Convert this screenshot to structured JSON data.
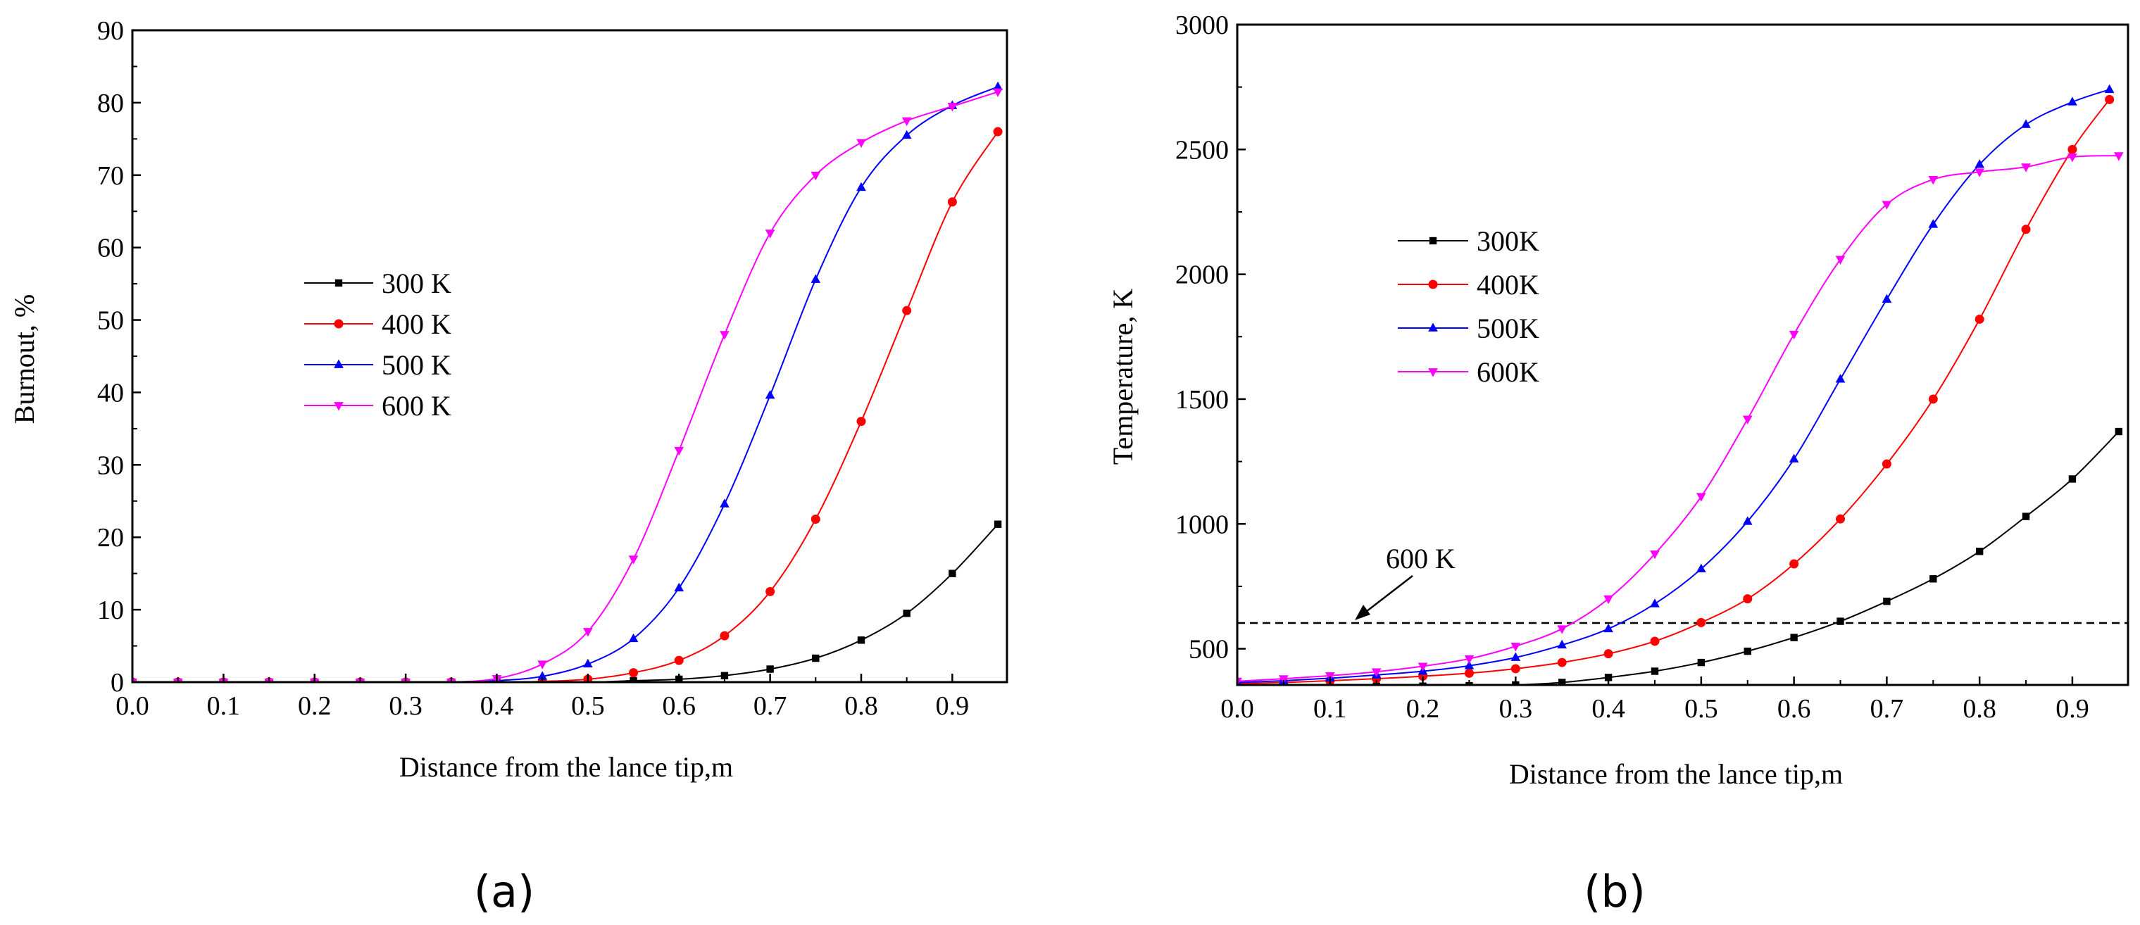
{
  "chart_data": [
    {
      "panel": "(a)",
      "type": "line",
      "xlabel": "Distance from the lance tip,m",
      "ylabel": "Burnout,   %",
      "xlim": [
        0.0,
        0.96
      ],
      "ylim": [
        0,
        90
      ],
      "xticks": [
        "0.0",
        "0.1",
        "0.2",
        "0.3",
        "0.4",
        "0.5",
        "0.6",
        "0.7",
        "0.8",
        "0.9"
      ],
      "yticks": [
        "0",
        "10",
        "20",
        "30",
        "40",
        "50",
        "60",
        "70",
        "80",
        "90"
      ],
      "legend": "center-left",
      "x": [
        0.0,
        0.05,
        0.1,
        0.15,
        0.2,
        0.25,
        0.3,
        0.35,
        0.4,
        0.45,
        0.5,
        0.55,
        0.6,
        0.65,
        0.7,
        0.75,
        0.8,
        0.85,
        0.9,
        0.95
      ],
      "series": [
        {
          "name": "300 K",
          "color": "#000000",
          "marker": "square",
          "values": [
            0,
            0,
            0,
            0,
            0,
            0,
            0,
            0,
            0,
            0,
            0,
            0.2,
            0.4,
            0.9,
            1.8,
            3.3,
            5.8,
            9.5,
            15.0,
            21.8
          ]
        },
        {
          "name": "400 K",
          "color": "#ff0000",
          "marker": "circle",
          "values": [
            0,
            0,
            0,
            0,
            0,
            0,
            0,
            0,
            0,
            0.1,
            0.4,
            1.3,
            3.0,
            6.4,
            12.5,
            22.5,
            36.0,
            51.3,
            66.3,
            76.0
          ]
        },
        {
          "name": "500 K",
          "color": "#0000ff",
          "marker": "triangle-up",
          "values": [
            0,
            0,
            0,
            0,
            0,
            0,
            0,
            0,
            0.2,
            0.8,
            2.5,
            6.0,
            13.0,
            24.6,
            39.6,
            55.6,
            68.3,
            75.5,
            79.6,
            82.2
          ]
        },
        {
          "name": "600 K",
          "color": "#ff00ff",
          "marker": "triangle-down",
          "values": [
            0,
            0,
            0,
            0,
            0,
            0,
            0,
            0,
            0.5,
            2.5,
            7.0,
            17.0,
            32.0,
            48.0,
            62.0,
            70.0,
            74.5,
            77.5,
            79.5,
            81.5
          ]
        }
      ]
    },
    {
      "panel": "(b)",
      "type": "line",
      "xlabel": "Distance from the lance tip,m",
      "ylabel": "Temperature, K",
      "xlim": [
        0.0,
        0.96
      ],
      "ylim": [
        355,
        3000
      ],
      "xticks": [
        "0.0",
        "0.1",
        "0.2",
        "0.3",
        "0.4",
        "0.5",
        "0.6",
        "0.7",
        "0.8",
        "0.9"
      ],
      "yticks": [
        "500",
        "1000",
        "1500",
        "2000",
        "2500",
        "3000"
      ],
      "legend": "upper-left",
      "reference_line": {
        "y": 600,
        "style": "dashed"
      },
      "annotation": "600 K",
      "series": [
        {
          "name": "300K",
          "color": "#000000",
          "marker": "square",
          "points": [
            [
              0.0,
              350
            ],
            [
              0.05,
              350
            ],
            [
              0.1,
              350
            ],
            [
              0.15,
              350
            ],
            [
              0.2,
              350
            ],
            [
              0.25,
              352
            ],
            [
              0.3,
              355
            ],
            [
              0.35,
              365
            ],
            [
              0.4,
              385
            ],
            [
              0.45,
              410
            ],
            [
              0.5,
              445
            ],
            [
              0.55,
              490
            ],
            [
              0.6,
              545
            ],
            [
              0.65,
              610
            ],
            [
              0.7,
              690
            ],
            [
              0.75,
              780
            ],
            [
              0.8,
              890
            ],
            [
              0.85,
              1030
            ],
            [
              0.9,
              1180
            ],
            [
              0.95,
              1370
            ]
          ]
        },
        {
          "name": "400K",
          "color": "#ff0000",
          "marker": "circle",
          "points": [
            [
              0.0,
              360
            ],
            [
              0.05,
              365
            ],
            [
              0.1,
              372
            ],
            [
              0.15,
              380
            ],
            [
              0.2,
              390
            ],
            [
              0.25,
              402
            ],
            [
              0.3,
              420
            ],
            [
              0.35,
              445
            ],
            [
              0.4,
              480
            ],
            [
              0.45,
              530
            ],
            [
              0.5,
              605
            ],
            [
              0.55,
              700
            ],
            [
              0.6,
              840
            ],
            [
              0.65,
              1020
            ],
            [
              0.7,
              1240
            ],
            [
              0.75,
              1500
            ],
            [
              0.8,
              1820
            ],
            [
              0.85,
              2180
            ],
            [
              0.9,
              2500
            ],
            [
              0.94,
              2700
            ]
          ]
        },
        {
          "name": "500K",
          "color": "#0000ff",
          "marker": "triangle-up",
          "points": [
            [
              0.0,
              365
            ],
            [
              0.05,
              372
            ],
            [
              0.1,
              382
            ],
            [
              0.15,
              395
            ],
            [
              0.2,
              410
            ],
            [
              0.25,
              432
            ],
            [
              0.3,
              465
            ],
            [
              0.35,
              515
            ],
            [
              0.4,
              580
            ],
            [
              0.45,
              680
            ],
            [
              0.5,
              820
            ],
            [
              0.55,
              1010
            ],
            [
              0.6,
              1260
            ],
            [
              0.65,
              1580
            ],
            [
              0.7,
              1900
            ],
            [
              0.75,
              2200
            ],
            [
              0.8,
              2440
            ],
            [
              0.85,
              2600
            ],
            [
              0.9,
              2690
            ],
            [
              0.94,
              2740
            ]
          ]
        },
        {
          "name": "600K",
          "color": "#ff00ff",
          "marker": "triangle-down",
          "points": [
            [
              0.0,
              370
            ],
            [
              0.05,
              380
            ],
            [
              0.1,
              392
            ],
            [
              0.15,
              408
            ],
            [
              0.2,
              430
            ],
            [
              0.25,
              460
            ],
            [
              0.3,
              510
            ],
            [
              0.35,
              580
            ],
            [
              0.4,
              700
            ],
            [
              0.45,
              880
            ],
            [
              0.5,
              1110
            ],
            [
              0.55,
              1420
            ],
            [
              0.6,
              1760
            ],
            [
              0.65,
              2060
            ],
            [
              0.7,
              2280
            ],
            [
              0.75,
              2380
            ],
            [
              0.8,
              2410
            ],
            [
              0.85,
              2430
            ],
            [
              0.9,
              2470
            ],
            [
              0.95,
              2475
            ]
          ]
        }
      ]
    }
  ]
}
